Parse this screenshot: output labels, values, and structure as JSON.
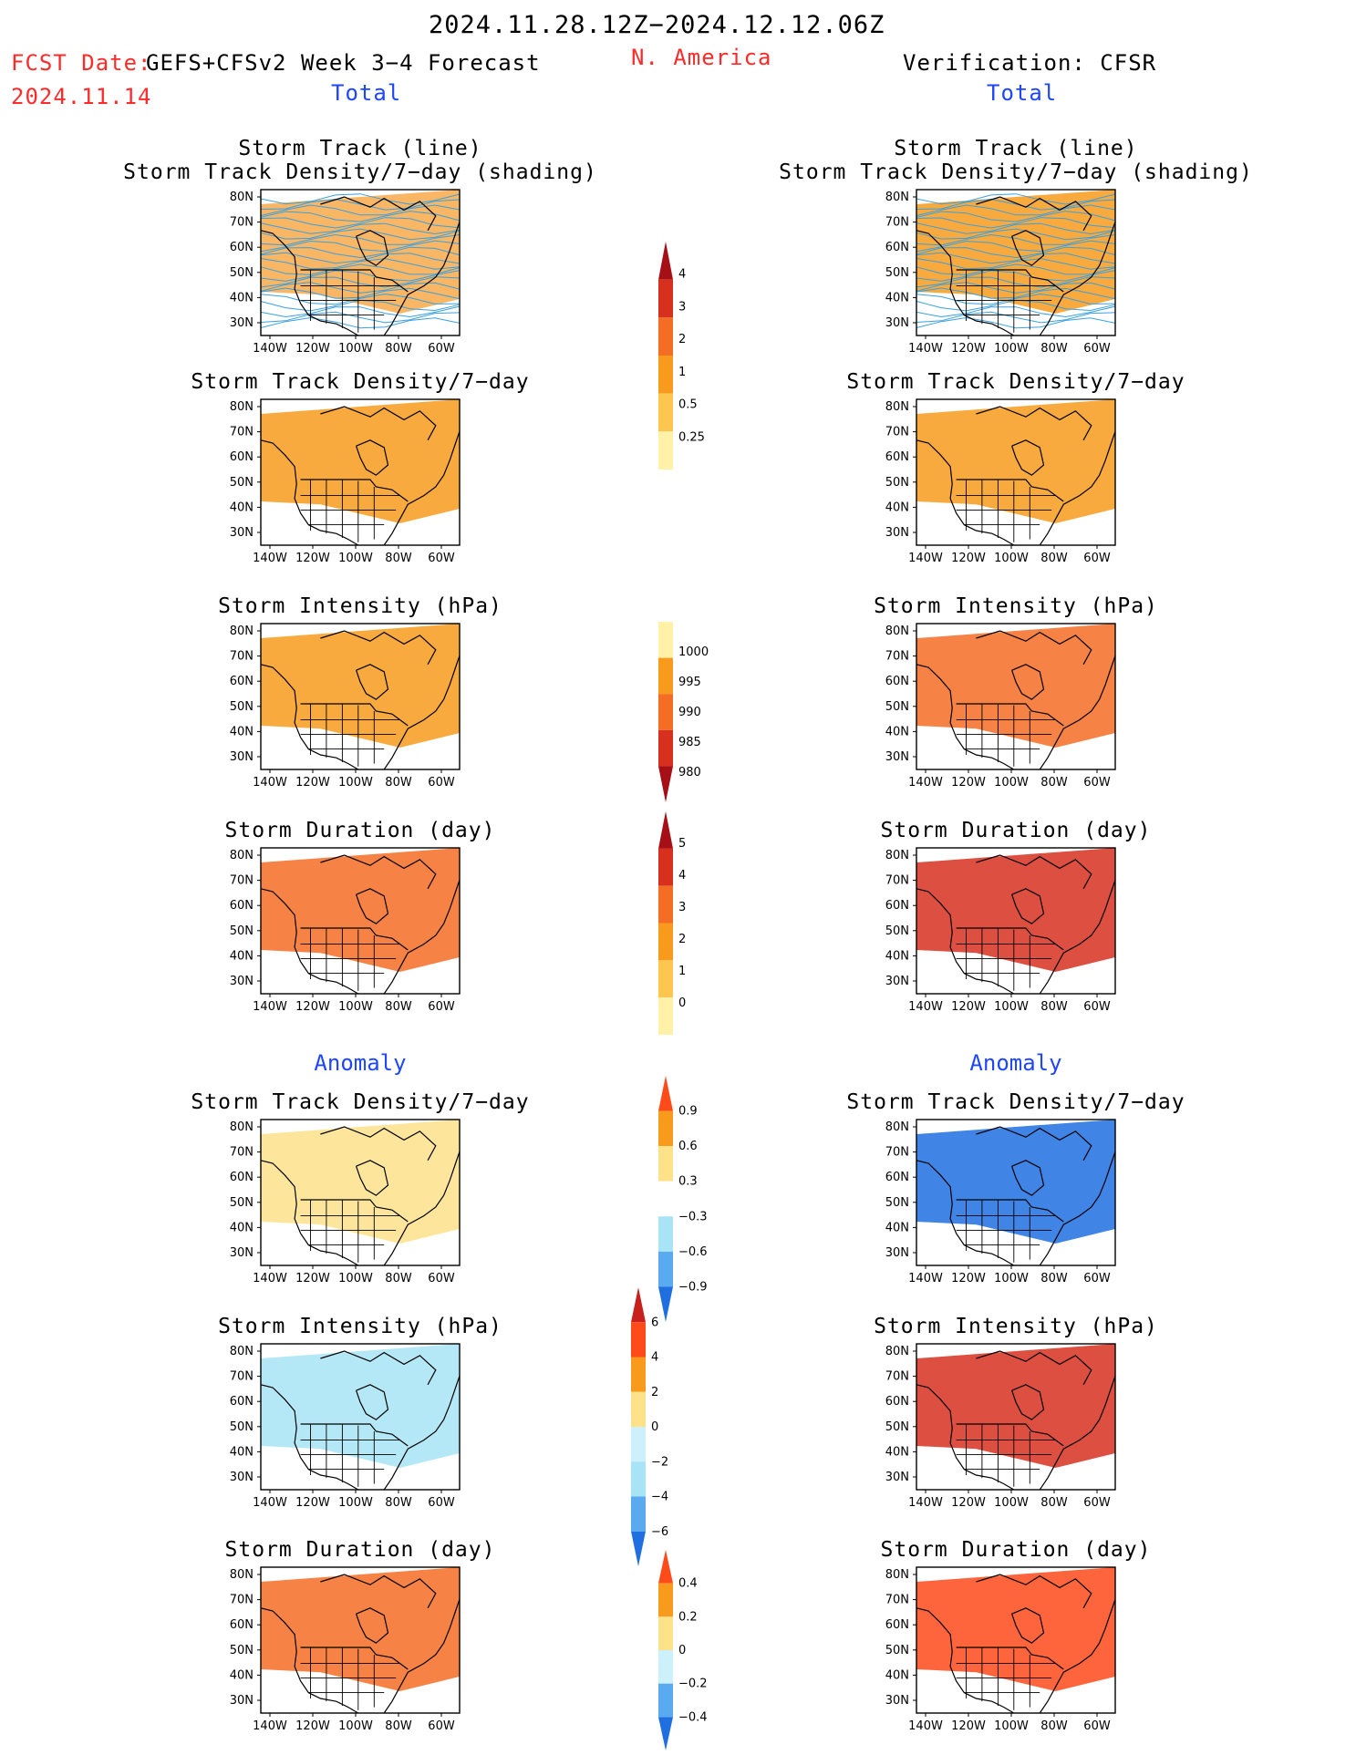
{
  "header": {
    "period": "2024.11.28.12Z−2024.12.12.06Z",
    "fcst_date_label": "FCST Date:",
    "fcst_date_value": "2024.11.14",
    "forecast_label": "GEFS+CFSv2 Week 3−4 Forecast",
    "region": "N. America",
    "verification": "Verification: CFSR"
  },
  "sections": {
    "total": "Total",
    "anomaly": "Anomaly"
  },
  "titles": {
    "track_line": "Storm Track (line)",
    "track_shading": "Storm Track Density/7−day (shading)",
    "density": "Storm Track Density/7−day",
    "intensity": "Storm Intensity (hPa)",
    "duration": "Storm Duration (day)"
  },
  "axes": {
    "lat_labels": [
      "80N",
      "70N",
      "60N",
      "50N",
      "40N",
      "30N"
    ],
    "lon_labels": [
      "140W",
      "120W",
      "100W",
      "80W",
      "60W"
    ]
  },
  "colorbars": [
    {
      "id": "density-total",
      "labels": [
        "4",
        "3",
        "2",
        "1",
        "0.5",
        "0.25"
      ],
      "colors": [
        "#a50f15",
        "#d7301f",
        "#f46d24",
        "#f89b1c",
        "#fdc64f",
        "#fff2a8"
      ]
    },
    {
      "id": "intensity-total",
      "labels": [
        "1000",
        "995",
        "990",
        "985",
        "980"
      ],
      "colors": [
        "#fff2a8",
        "#f89b1c",
        "#f46d24",
        "#d7301f",
        "#a50f15"
      ]
    },
    {
      "id": "duration-total",
      "labels": [
        "5",
        "4",
        "3",
        "2",
        "1",
        "0"
      ],
      "colors": [
        "#a50f15",
        "#d7301f",
        "#f46d24",
        "#f89b1c",
        "#fdc64f",
        "#fff2a8"
      ]
    },
    {
      "id": "density-anomaly",
      "labels": [
        "0.9",
        "0.6",
        "0.3",
        "−0.3",
        "−0.6",
        "−0.9"
      ],
      "colors": [
        "#ff4a1a",
        "#f89b1c",
        "#fde28a",
        "#ffffff",
        "#a8e4f6",
        "#5aaaf0",
        "#1f6fe0"
      ]
    },
    {
      "id": "intensity-anomaly",
      "labels": [
        "6",
        "4",
        "2",
        "0",
        "−2",
        "−4",
        "−6"
      ],
      "colors": [
        "#c8201c",
        "#ff4a1a",
        "#f89b1c",
        "#fde28a",
        "#cdf1fb",
        "#a8e4f6",
        "#5aaaf0",
        "#1f6fe0"
      ]
    },
    {
      "id": "duration-anomaly",
      "labels": [
        "0.4",
        "0.2",
        "0",
        "−0.2",
        "−0.4"
      ],
      "colors": [
        "#ff4a1a",
        "#f89b1c",
        "#fde28a",
        "#cdf1fb",
        "#5aaaf0",
        "#1f6fe0"
      ]
    }
  ],
  "panels": [
    {
      "id": "fcst-track",
      "column": "forecast",
      "title_keys": [
        "track_line",
        "track_shading"
      ],
      "fill": "#f8a94a",
      "tracks": true
    },
    {
      "id": "fcst-density",
      "column": "forecast",
      "title_keys": [
        "density"
      ],
      "fill": "#f89b1c"
    },
    {
      "id": "fcst-intensity",
      "column": "forecast",
      "title_keys": [
        "intensity"
      ],
      "fill": "#f89b1c"
    },
    {
      "id": "fcst-duration",
      "column": "forecast",
      "title_keys": [
        "duration"
      ],
      "fill": "#f46d24"
    },
    {
      "id": "fcst-density-anom",
      "column": "forecast",
      "title_keys": [
        "density"
      ],
      "fill": "#fde28a"
    },
    {
      "id": "fcst-intensity-anom",
      "column": "forecast",
      "title_keys": [
        "intensity"
      ],
      "fill": "#a8e4f6"
    },
    {
      "id": "fcst-duration-anom",
      "column": "forecast",
      "title_keys": [
        "duration"
      ],
      "fill": "#f46d24"
    },
    {
      "id": "verif-track",
      "column": "verification",
      "title_keys": [
        "track_line",
        "track_shading"
      ],
      "fill": "#f89b1c",
      "tracks": true
    },
    {
      "id": "verif-density",
      "column": "verification",
      "title_keys": [
        "density"
      ],
      "fill": "#f89b1c"
    },
    {
      "id": "verif-intensity",
      "column": "verification",
      "title_keys": [
        "intensity"
      ],
      "fill": "#f46d24"
    },
    {
      "id": "verif-duration",
      "column": "verification",
      "title_keys": [
        "duration"
      ],
      "fill": "#d7301f"
    },
    {
      "id": "verif-density-anom",
      "column": "verification",
      "title_keys": [
        "density"
      ],
      "fill": "#1f6fe0"
    },
    {
      "id": "verif-intensity-anom",
      "column": "verification",
      "title_keys": [
        "intensity"
      ],
      "fill": "#d7301f"
    },
    {
      "id": "verif-duration-anom",
      "column": "verification",
      "title_keys": [
        "duration"
      ],
      "fill": "#ff4a1a"
    }
  ]
}
